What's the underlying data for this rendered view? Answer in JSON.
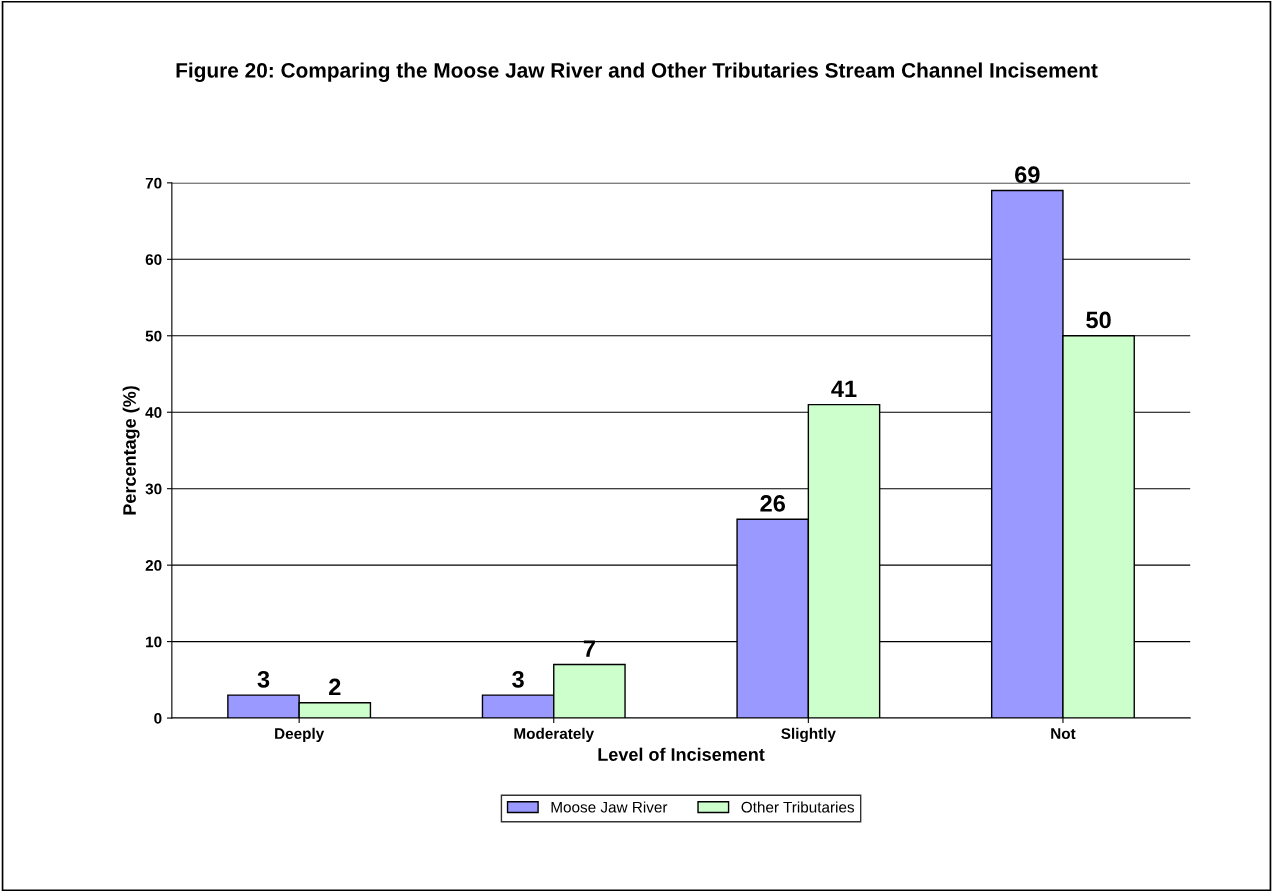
{
  "chart_data": {
    "type": "bar",
    "title": "Figure 20: Comparing the Moose Jaw River and Other Tributaries Stream Channel Incisement",
    "xlabel": "Level of Incisement",
    "ylabel": "Percentage (%)",
    "categories": [
      "Deeply",
      "Moderately",
      "Slightly",
      "Not"
    ],
    "series": [
      {
        "name": "Moose Jaw River",
        "color": "#9999ff",
        "values": [
          3,
          3,
          26,
          69
        ]
      },
      {
        "name": "Other Tributaries",
        "color": "#ccffcc",
        "values": [
          2,
          7,
          41,
          50
        ]
      }
    ],
    "ylim": [
      0,
      70
    ],
    "yticks": [
      0,
      10,
      20,
      30,
      40,
      50,
      60,
      70
    ],
    "grid": "y",
    "legend": "bottom",
    "data_labels": true
  }
}
